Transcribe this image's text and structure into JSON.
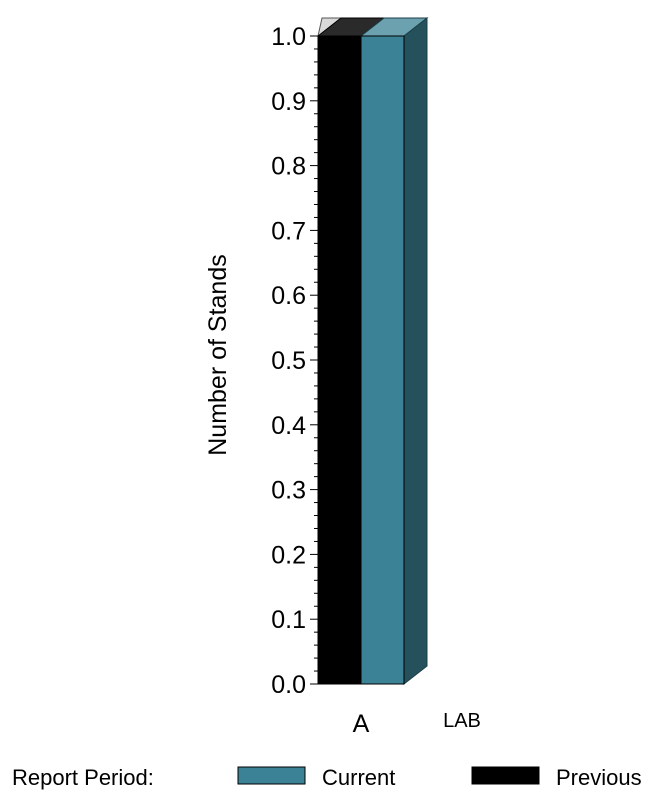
{
  "chart_data": {
    "type": "bar",
    "ylabel": "Number of Stands",
    "ylim": [
      0,
      1.0
    ],
    "yticks": [
      "0.0",
      "0.1",
      "0.2",
      "0.3",
      "0.4",
      "0.5",
      "0.6",
      "0.7",
      "0.8",
      "0.9",
      "1.0"
    ],
    "group_label": "LAB",
    "categories": [
      "A"
    ],
    "series": [
      {
        "name": "Previous",
        "values": [
          1.0
        ],
        "color": "#000000"
      },
      {
        "name": "Current",
        "values": [
          1.0
        ],
        "color": "#3b8296"
      }
    ],
    "legend": {
      "title": "Report Period:",
      "position": "bottom",
      "entries": [
        "Current",
        "Previous"
      ]
    }
  }
}
